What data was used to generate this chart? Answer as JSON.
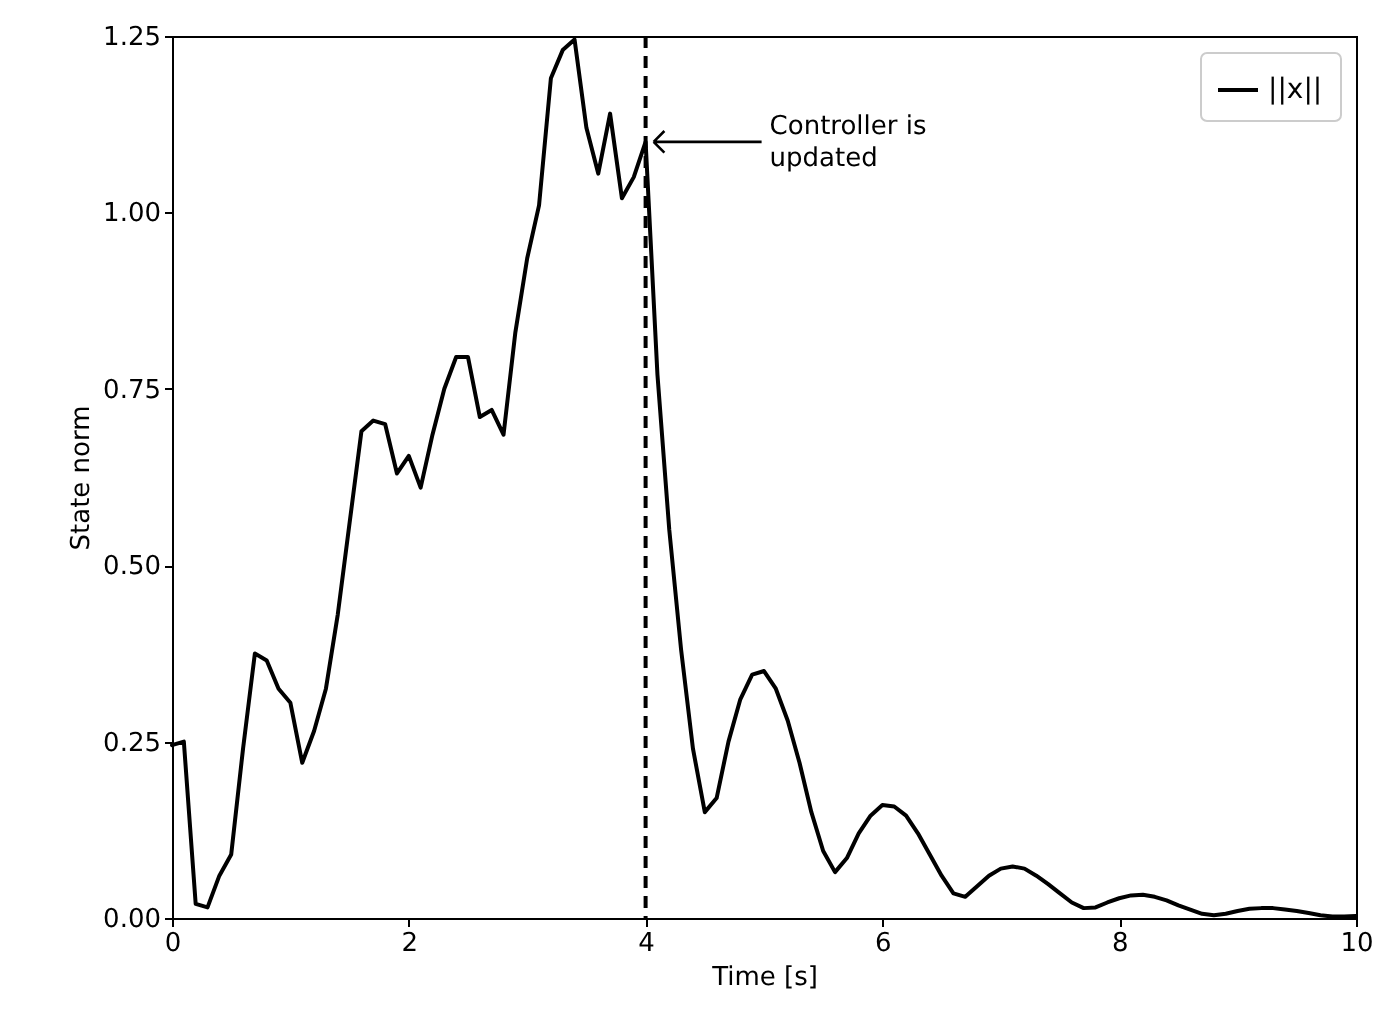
{
  "chart_data": {
    "type": "line",
    "xlabel": "Time [s]",
    "ylabel": "State norm",
    "x": [
      0,
      0.1,
      0.2,
      0.3,
      0.4,
      0.5,
      0.6,
      0.7,
      0.8,
      0.9,
      1.0,
      1.1,
      1.2,
      1.3,
      1.4,
      1.5,
      1.6,
      1.7,
      1.8,
      1.9,
      2.0,
      2.1,
      2.2,
      2.3,
      2.4,
      2.5,
      2.6,
      2.7,
      2.8,
      2.9,
      3.0,
      3.1,
      3.2,
      3.3,
      3.4,
      3.5,
      3.6,
      3.7,
      3.8,
      3.9,
      4.0,
      4.1,
      4.2,
      4.3,
      4.4,
      4.5,
      4.6,
      4.7,
      4.8,
      4.9,
      5.0,
      5.1,
      5.2,
      5.3,
      5.4,
      5.5,
      5.6,
      5.7,
      5.8,
      5.9,
      6.0,
      6.1,
      6.2,
      6.3,
      6.4,
      6.5,
      6.6,
      6.7,
      6.8,
      6.9,
      7.0,
      7.1,
      7.2,
      7.3,
      7.4,
      7.5,
      7.6,
      7.7,
      7.8,
      7.9,
      8.0,
      8.1,
      8.2,
      8.3,
      8.4,
      8.5,
      8.6,
      8.7,
      8.8,
      8.9,
      9.0,
      9.1,
      9.2,
      9.3,
      9.4,
      9.5,
      9.6,
      9.7,
      9.8,
      9.9,
      10.0
    ],
    "series": [
      {
        "name": "||x||",
        "color": "#000000",
        "values": [
          0.245,
          0.25,
          0.02,
          0.015,
          0.06,
          0.09,
          0.24,
          0.375,
          0.365,
          0.325,
          0.305,
          0.22,
          0.265,
          0.325,
          0.43,
          0.56,
          0.69,
          0.705,
          0.7,
          0.63,
          0.655,
          0.61,
          0.685,
          0.75,
          0.795,
          0.795,
          0.71,
          0.72,
          0.685,
          0.83,
          0.935,
          1.01,
          1.19,
          1.23,
          1.245,
          1.12,
          1.055,
          1.14,
          1.02,
          1.05,
          1.1,
          0.77,
          0.55,
          0.38,
          0.24,
          0.15,
          0.17,
          0.25,
          0.31,
          0.345,
          0.35,
          0.325,
          0.28,
          0.22,
          0.15,
          0.095,
          0.065,
          0.085,
          0.12,
          0.145,
          0.16,
          0.158,
          0.145,
          0.12,
          0.09,
          0.06,
          0.035,
          0.03,
          0.045,
          0.06,
          0.07,
          0.073,
          0.07,
          0.06,
          0.048,
          0.035,
          0.022,
          0.014,
          0.015,
          0.022,
          0.028,
          0.032,
          0.033,
          0.03,
          0.025,
          0.018,
          0.012,
          0.006,
          0.004,
          0.006,
          0.01,
          0.013,
          0.014,
          0.014,
          0.012,
          0.01,
          0.007,
          0.004,
          0.002,
          0.002,
          0.003
        ]
      }
    ],
    "xlim": [
      0,
      10
    ],
    "xticks": [
      0,
      2,
      4,
      6,
      8,
      10
    ],
    "ylim": [
      0,
      1.25
    ],
    "yticks": [
      {
        "value": 0,
        "label": "0.00"
      },
      {
        "value": 0.25,
        "label": "0.25"
      },
      {
        "value": 0.5,
        "label": "0.50"
      },
      {
        "value": 0.75,
        "label": "0.75"
      },
      {
        "value": 1,
        "label": "1.00"
      },
      {
        "value": 1.25,
        "label": "1.25"
      }
    ],
    "ref_lines": [
      {
        "axis": "x",
        "value": 4,
        "color": "#000000",
        "line_style": "dashed"
      }
    ],
    "annotations": [
      "Controller is\nupdated"
    ],
    "legend": "top right",
    "grid": false,
    "line_style": "solid",
    "marker": "none"
  }
}
